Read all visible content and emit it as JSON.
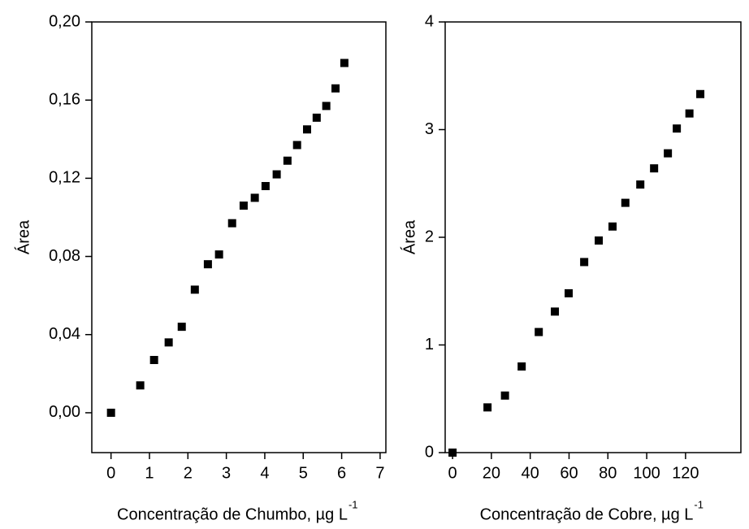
{
  "chart_data": [
    {
      "type": "scatter",
      "y_label": "Área",
      "x_label": "Concentração de Chumbo, µg L",
      "x_label_superscript": "-1",
      "x": [
        0,
        0.76,
        1.12,
        1.5,
        1.84,
        2.18,
        2.52,
        2.81,
        3.15,
        3.45,
        3.74,
        4.02,
        4.31,
        4.59,
        4.84,
        5.1,
        5.35,
        5.6,
        5.84,
        6.07
      ],
      "values": [
        0.0,
        0.014,
        0.027,
        0.036,
        0.044,
        0.063,
        0.076,
        0.081,
        0.097,
        0.106,
        0.11,
        0.116,
        0.122,
        0.129,
        0.137,
        0.145,
        0.151,
        0.157,
        0.166,
        0.179
      ],
      "color": "#000000",
      "xlim": [
        -0.5,
        7.15
      ],
      "xticks": [
        0,
        1,
        2,
        3,
        4,
        5,
        6,
        7
      ],
      "ylim": [
        -0.0204,
        0.2
      ],
      "yticks": [
        {
          "value": 0,
          "label": "0,00"
        },
        {
          "value": 0.04,
          "label": "0,04"
        },
        {
          "value": 0.08,
          "label": "0,08"
        },
        {
          "value": 0.12,
          "label": "0,12"
        },
        {
          "value": 0.16,
          "label": "0,16"
        },
        {
          "value": 0.2,
          "label": "0,20"
        }
      ]
    },
    {
      "type": "scatter",
      "y_label": "Área",
      "x_label": "Concentração de Cobre, µg L",
      "x_label_superscript": "-1",
      "x": [
        0,
        18,
        27,
        35.6,
        44.4,
        52.7,
        59.8,
        67.8,
        75.3,
        82.4,
        89,
        96.7,
        103.8,
        110.9,
        115.5,
        122,
        127.6
      ],
      "values": [
        0,
        0.42,
        0.53,
        0.8,
        1.12,
        1.31,
        1.48,
        1.77,
        1.97,
        2.1,
        2.32,
        2.49,
        2.64,
        2.78,
        3.01,
        3.15,
        3.33
      ],
      "color": "#000000",
      "xlim": [
        -3.8,
        148.5
      ],
      "xticks": [
        0,
        20,
        40,
        60,
        80,
        100,
        120
      ],
      "ylim": [
        0,
        4
      ],
      "yticks": [
        0,
        1,
        2,
        3,
        4
      ]
    }
  ]
}
